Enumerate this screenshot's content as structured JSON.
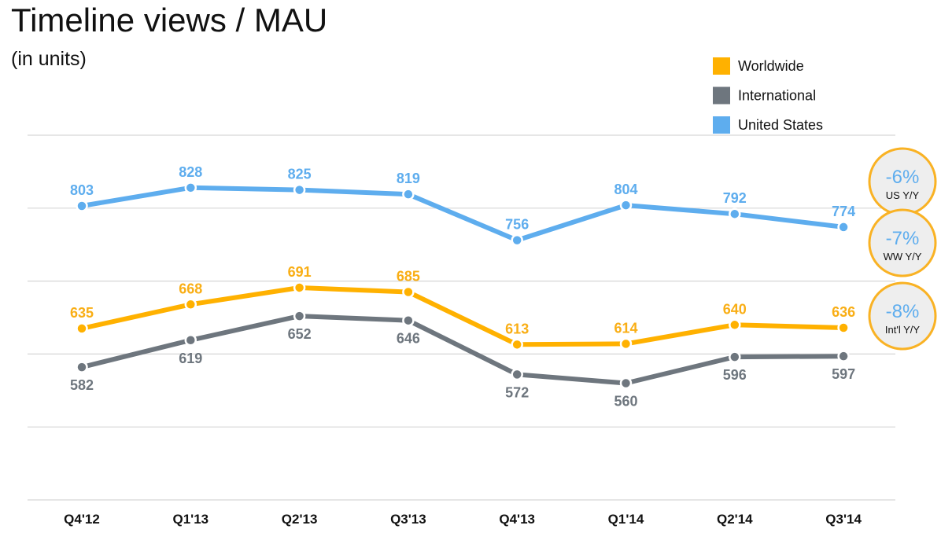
{
  "title": "Timeline views / MAU",
  "subtitle": "(in units)",
  "chart_data": {
    "type": "line",
    "categories": [
      "Q4'12",
      "Q1'13",
      "Q2'13",
      "Q3'13",
      "Q4'13",
      "Q1'14",
      "Q2'14",
      "Q3'14"
    ],
    "ylim": [
      400,
      900
    ],
    "grid": true,
    "legend_position": "top-right",
    "series": [
      {
        "name": "Worldwide",
        "key": "ww",
        "color": "#FFB100",
        "label_color": "#F9AE15",
        "label_side": "above",
        "values": [
          635,
          668,
          691,
          685,
          613,
          614,
          640,
          636
        ]
      },
      {
        "name": "International",
        "key": "intl",
        "color": "#6E767E",
        "label_color": "#6E767E",
        "label_side": "below",
        "values": [
          582,
          619,
          652,
          646,
          572,
          560,
          596,
          597
        ]
      },
      {
        "name": "United States",
        "key": "us",
        "color": "#5EADEE",
        "label_color": "#5EADEE",
        "label_side": "above",
        "values": [
          803,
          828,
          825,
          819,
          756,
          804,
          792,
          774
        ]
      }
    ],
    "legend_order": [
      "ww",
      "intl",
      "us"
    ],
    "badges": [
      {
        "value": "-6%",
        "label": "US Y/Y",
        "series": "us"
      },
      {
        "value": "-7%",
        "label": "WW Y/Y",
        "series": "ww"
      },
      {
        "value": "-8%",
        "label": "Int'l Y/Y",
        "series": "intl"
      }
    ]
  },
  "colors": {
    "badge_border": "#F9B224",
    "badge_fill": "#EEEEEE",
    "badge_value": "#5EADEE",
    "grid": "#D6D6D6",
    "tick_text": "#111111"
  }
}
